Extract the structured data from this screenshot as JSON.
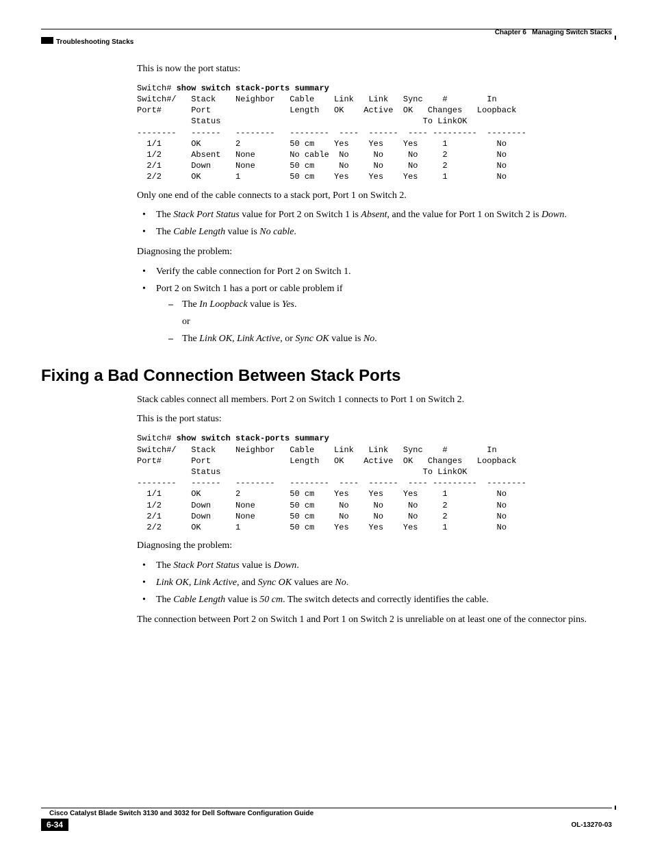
{
  "header": {
    "chapter_label": "Chapter 6",
    "chapter_title": "Managing Switch Stacks",
    "section": "Troubleshooting Stacks"
  },
  "body": {
    "p1": "This is now the port status:",
    "cli1": {
      "prompt": "Switch# ",
      "cmd": "show switch stack-ports summary",
      "rows": "Switch#/   Stack    Neighbor   Cable    Link   Link   Sync    #        In\nPort#      Port                Length   OK    Active  OK   Changes   Loopback\n           Status                                         To LinkOK\n--------   ------   --------   --------  ----  ------  ---- ---------  --------\n  1/1      OK       2          50 cm    Yes    Yes    Yes     1          No\n  1/2      Absent   None       No cable  No     No     No     2          No\n  2/1      Down     None       50 cm     No     No     No     2          No\n  2/2      OK       1          50 cm    Yes    Yes    Yes     1          No"
    },
    "p2": "Only one end of the cable connects to a stack port, Port 1 on Switch 2.",
    "b1_pre": "The ",
    "b1_i1": "Stack Port Status",
    "b1_mid1": " value for Port 2 on Switch 1 is ",
    "b1_i2": "Absent",
    "b1_mid2": ", and the value for Port 1 on Switch 2 is ",
    "b1_i3": "Down",
    "b1_post": ".",
    "b2_pre": "The ",
    "b2_i1": "Cable Length",
    "b2_mid": " value is ",
    "b2_i2": "No cable",
    "b2_post": ".",
    "p3": "Diagnosing the problem:",
    "b3": "Verify the cable connection for Port 2 on Switch 1.",
    "b4": "Port 2 on Switch 1 has a port or cable problem if",
    "d1_pre": "The ",
    "d1_i": "In Loopback",
    "d1_mid": " value is ",
    "d1_i2": "Yes",
    "d1_post": ".",
    "or": "or",
    "d2_pre": "The ",
    "d2_i1": "Link OK",
    "d2_c1": ", ",
    "d2_i2": "Link Active",
    "d2_c2": ", or ",
    "d2_i3": "Sync OK",
    "d2_mid": " value is ",
    "d2_i4": "No",
    "d2_post": ".",
    "h2": "Fixing a Bad Connection Between Stack Ports",
    "p4": "Stack cables connect all members. Port 2 on Switch 1 connects to Port 1 on Switch 2.",
    "p5": "This is the port status:",
    "cli2": {
      "prompt": "Switch# ",
      "cmd": "show switch stack-ports summary",
      "rows": "Switch#/   Stack    Neighbor   Cable    Link   Link   Sync    #        In\nPort#      Port                Length   OK    Active  OK   Changes   Loopback\n           Status                                         To LinkOK\n--------   ------   --------   --------  ----  ------  ---- ---------  --------\n  1/1      OK       2          50 cm    Yes    Yes    Yes     1          No\n  1/2      Down     None       50 cm     No     No     No     2          No\n  2/1      Down     None       50 cm     No     No     No     2          No\n  2/2      OK       1          50 cm    Yes    Yes    Yes     1          No"
    },
    "p6": "Diagnosing the problem:",
    "bb1_pre": "The ",
    "bb1_i": "Stack Port Status",
    "bb1_mid": " value is ",
    "bb1_i2": "Down",
    "bb1_post": ".",
    "bb2_i1": "Link OK",
    "bb2_c1": ", ",
    "bb2_i2": "Link Active",
    "bb2_c2": ", and ",
    "bb2_i3": "Sync OK",
    "bb2_mid": " values are ",
    "bb2_i4": "No",
    "bb2_post": ".",
    "bb3_pre": "The ",
    "bb3_i1": "Cable Length",
    "bb3_mid": " value is ",
    "bb3_i2": "50 cm",
    "bb3_post": ". The switch detects and correctly identifies the cable.",
    "p7": "The connection between Port 2 on Switch 1 and Port 1 on Switch 2 is unreliable on at least one of the connector pins."
  },
  "footer": {
    "book": "Cisco Catalyst Blade Switch 3130 and 3032 for Dell Software Configuration Guide",
    "page": "6-34",
    "ol": "OL-13270-03"
  }
}
